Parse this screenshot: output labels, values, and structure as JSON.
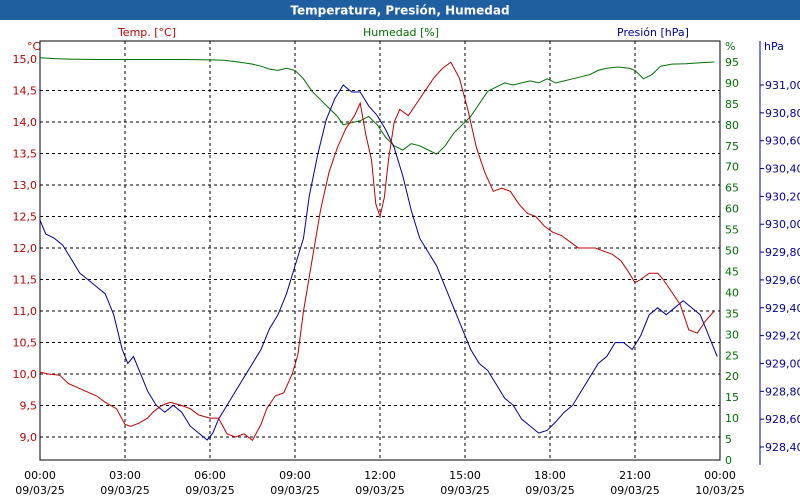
{
  "chart_data": {
    "type": "line",
    "title": "Temperatura, Presión, Humedad",
    "colors": {
      "temp": "#c00000",
      "hum": "#007000",
      "pres": "#000099",
      "title_bar": "#1f5fa0"
    },
    "axes": {
      "temp": {
        "label": "Temp. [°C]",
        "unit": "°C",
        "ylim": [
          8.6,
          15.2
        ],
        "ticks": [
          "15,0",
          "14,5",
          "14,0",
          "13,5",
          "13,0",
          "12,5",
          "12,0",
          "11,5",
          "11,0",
          "10,5",
          "10,0",
          "9,5",
          "9,0"
        ],
        "tick_values": [
          15.0,
          14.5,
          14.0,
          13.5,
          13.0,
          12.5,
          12.0,
          11.5,
          11.0,
          10.5,
          10.0,
          9.5,
          9.0
        ]
      },
      "hum": {
        "label": "Humedad [%]",
        "unit": "%",
        "ylim": [
          0,
          98
        ],
        "ticks": [
          "95",
          "90",
          "85",
          "80",
          "75",
          "70",
          "65",
          "60",
          "55",
          "50",
          "45",
          "40",
          "35",
          "30",
          "25",
          "20",
          "15",
          "10",
          "5",
          "0"
        ],
        "tick_values": [
          95,
          90,
          85,
          80,
          75,
          70,
          65,
          60,
          55,
          50,
          45,
          40,
          35,
          30,
          25,
          20,
          15,
          10,
          5,
          0
        ]
      },
      "pres": {
        "label": "Presión [hPa]",
        "unit": "hPa",
        "ylim": [
          928.3,
          931.15
        ],
        "ticks": [
          "931,00",
          "930,80",
          "930,60",
          "930,40",
          "930,20",
          "930,00",
          "929,80",
          "929,60",
          "929,40",
          "929,20",
          "929,00",
          "928,80",
          "928,60",
          "928,40"
        ],
        "tick_values": [
          931.0,
          930.8,
          930.6,
          930.4,
          930.2,
          930.0,
          929.8,
          929.6,
          929.4,
          929.2,
          929.0,
          928.8,
          928.6,
          928.4
        ]
      }
    },
    "x_ticks": [
      {
        "time": "00:00",
        "date": "09/03/25",
        "h": 0
      },
      {
        "time": "03:00",
        "date": "09/03/25",
        "h": 3
      },
      {
        "time": "06:00",
        "date": "09/03/25",
        "h": 6
      },
      {
        "time": "09:00",
        "date": "09/03/25",
        "h": 9
      },
      {
        "time": "12:00",
        "date": "09/03/25",
        "h": 12
      },
      {
        "time": "15:00",
        "date": "09/03/25",
        "h": 15
      },
      {
        "time": "18:00",
        "date": "09/03/25",
        "h": 18
      },
      {
        "time": "21:00",
        "date": "09/03/25",
        "h": 21
      },
      {
        "time": "00:00",
        "date": "10/03/25",
        "h": 24
      }
    ],
    "xlim": [
      0,
      24
    ],
    "series": [
      {
        "name": "Temp. [°C]",
        "axis": "temp",
        "key": "temp",
        "points": [
          [
            0,
            10.03
          ],
          [
            0.3,
            10.0
          ],
          [
            0.7,
            9.98
          ],
          [
            1.0,
            9.85
          ],
          [
            1.5,
            9.75
          ],
          [
            2.0,
            9.65
          ],
          [
            2.3,
            9.55
          ],
          [
            2.7,
            9.45
          ],
          [
            3.0,
            9.2
          ],
          [
            3.2,
            9.17
          ],
          [
            3.5,
            9.22
          ],
          [
            3.8,
            9.3
          ],
          [
            4.0,
            9.4
          ],
          [
            4.3,
            9.5
          ],
          [
            4.6,
            9.55
          ],
          [
            5.0,
            9.5
          ],
          [
            5.3,
            9.45
          ],
          [
            5.6,
            9.35
          ],
          [
            6.0,
            9.3
          ],
          [
            6.3,
            9.3
          ],
          [
            6.6,
            9.05
          ],
          [
            6.9,
            9.0
          ],
          [
            7.2,
            9.05
          ],
          [
            7.5,
            8.95
          ],
          [
            7.8,
            9.2
          ],
          [
            8.0,
            9.45
          ],
          [
            8.3,
            9.65
          ],
          [
            8.6,
            9.7
          ],
          [
            8.9,
            10.0
          ],
          [
            9.1,
            10.3
          ],
          [
            9.3,
            11.0
          ],
          [
            9.6,
            11.8
          ],
          [
            9.9,
            12.6
          ],
          [
            10.2,
            13.2
          ],
          [
            10.5,
            13.6
          ],
          [
            10.8,
            13.9
          ],
          [
            11.1,
            14.1
          ],
          [
            11.3,
            14.3
          ],
          [
            11.5,
            13.8
          ],
          [
            11.7,
            13.4
          ],
          [
            11.85,
            12.7
          ],
          [
            12.0,
            12.5
          ],
          [
            12.15,
            12.8
          ],
          [
            12.3,
            13.4
          ],
          [
            12.5,
            14.0
          ],
          [
            12.7,
            14.2
          ],
          [
            13.0,
            14.1
          ],
          [
            13.3,
            14.3
          ],
          [
            13.6,
            14.5
          ],
          [
            13.9,
            14.7
          ],
          [
            14.2,
            14.85
          ],
          [
            14.5,
            14.95
          ],
          [
            14.8,
            14.7
          ],
          [
            15.1,
            14.2
          ],
          [
            15.4,
            13.6
          ],
          [
            15.7,
            13.2
          ],
          [
            16.0,
            12.9
          ],
          [
            16.3,
            12.95
          ],
          [
            16.6,
            12.9
          ],
          [
            16.9,
            12.7
          ],
          [
            17.2,
            12.55
          ],
          [
            17.5,
            12.5
          ],
          [
            17.8,
            12.35
          ],
          [
            18.1,
            12.25
          ],
          [
            18.4,
            12.2
          ],
          [
            18.7,
            12.1
          ],
          [
            19.0,
            12.0
          ],
          [
            19.3,
            12.0
          ],
          [
            19.6,
            12.0
          ],
          [
            19.9,
            11.95
          ],
          [
            20.2,
            11.9
          ],
          [
            20.5,
            11.8
          ],
          [
            20.8,
            11.6
          ],
          [
            21.0,
            11.45
          ],
          [
            21.2,
            11.5
          ],
          [
            21.5,
            11.6
          ],
          [
            21.8,
            11.6
          ],
          [
            22.0,
            11.5
          ],
          [
            22.3,
            11.3
          ],
          [
            22.6,
            11.1
          ],
          [
            22.9,
            10.7
          ],
          [
            23.2,
            10.65
          ],
          [
            23.5,
            10.85
          ],
          [
            23.8,
            11.0
          ]
        ]
      },
      {
        "name": "Humedad [%]",
        "axis": "hum",
        "key": "hum",
        "points": [
          [
            0,
            96.0
          ],
          [
            0.5,
            95.8
          ],
          [
            1.0,
            95.7
          ],
          [
            2.0,
            95.6
          ],
          [
            3.0,
            95.6
          ],
          [
            4.0,
            95.6
          ],
          [
            5.0,
            95.6
          ],
          [
            6.0,
            95.5
          ],
          [
            6.5,
            95.4
          ],
          [
            7.0,
            95.0
          ],
          [
            7.5,
            94.5
          ],
          [
            7.8,
            94.0
          ],
          [
            8.1,
            93.3
          ],
          [
            8.4,
            93.0
          ],
          [
            8.7,
            93.5
          ],
          [
            9.0,
            93.0
          ],
          [
            9.3,
            91.0
          ],
          [
            9.6,
            88.0
          ],
          [
            9.9,
            86.0
          ],
          [
            10.2,
            84.0
          ],
          [
            10.5,
            82.0
          ],
          [
            10.7,
            80.0
          ],
          [
            11.0,
            80.5
          ],
          [
            11.3,
            81.0
          ],
          [
            11.6,
            82.0
          ],
          [
            11.9,
            80.0
          ],
          [
            12.2,
            77.0
          ],
          [
            12.5,
            75.0
          ],
          [
            12.8,
            74.0
          ],
          [
            13.1,
            75.5
          ],
          [
            13.4,
            75.0
          ],
          [
            13.7,
            74.0
          ],
          [
            14.0,
            73.0
          ],
          [
            14.3,
            75.0
          ],
          [
            14.6,
            78.0
          ],
          [
            14.9,
            80.0
          ],
          [
            15.2,
            82.0
          ],
          [
            15.5,
            85.0
          ],
          [
            15.8,
            88.0
          ],
          [
            16.1,
            89.0
          ],
          [
            16.4,
            90.0
          ],
          [
            16.7,
            89.5
          ],
          [
            17.0,
            90.0
          ],
          [
            17.3,
            90.5
          ],
          [
            17.6,
            90.0
          ],
          [
            17.9,
            91.0
          ],
          [
            18.2,
            90.0
          ],
          [
            18.5,
            90.5
          ],
          [
            18.8,
            91.0
          ],
          [
            19.1,
            91.5
          ],
          [
            19.4,
            92.0
          ],
          [
            19.7,
            93.0
          ],
          [
            20.0,
            93.5
          ],
          [
            20.4,
            93.8
          ],
          [
            20.8,
            93.5
          ],
          [
            21.0,
            93.0
          ],
          [
            21.3,
            91.0
          ],
          [
            21.6,
            92.0
          ],
          [
            21.9,
            94.0
          ],
          [
            22.3,
            94.5
          ],
          [
            22.8,
            94.6
          ],
          [
            23.3,
            94.8
          ],
          [
            23.8,
            95.0
          ]
        ]
      },
      {
        "name": "Presión [hPa]",
        "axis": "pres",
        "key": "pres",
        "points": [
          [
            0,
            930.03
          ],
          [
            0.2,
            929.93
          ],
          [
            0.5,
            929.9
          ],
          [
            0.8,
            929.85
          ],
          [
            1.1,
            929.75
          ],
          [
            1.4,
            929.65
          ],
          [
            1.7,
            929.6
          ],
          [
            2.0,
            929.55
          ],
          [
            2.3,
            929.5
          ],
          [
            2.6,
            929.35
          ],
          [
            2.9,
            929.1
          ],
          [
            3.1,
            929.0
          ],
          [
            3.3,
            929.05
          ],
          [
            3.5,
            928.95
          ],
          [
            3.8,
            928.8
          ],
          [
            4.1,
            928.7
          ],
          [
            4.4,
            928.65
          ],
          [
            4.7,
            928.7
          ],
          [
            5.0,
            928.65
          ],
          [
            5.3,
            928.55
          ],
          [
            5.6,
            928.5
          ],
          [
            5.9,
            928.45
          ],
          [
            6.1,
            928.5
          ],
          [
            6.3,
            928.6
          ],
          [
            6.6,
            928.7
          ],
          [
            6.9,
            928.8
          ],
          [
            7.2,
            928.9
          ],
          [
            7.5,
            929.0
          ],
          [
            7.8,
            929.1
          ],
          [
            8.1,
            929.25
          ],
          [
            8.4,
            929.35
          ],
          [
            8.7,
            929.5
          ],
          [
            9.0,
            929.7
          ],
          [
            9.3,
            929.9
          ],
          [
            9.5,
            930.2
          ],
          [
            9.8,
            930.5
          ],
          [
            10.1,
            930.75
          ],
          [
            10.4,
            930.9
          ],
          [
            10.7,
            931.0
          ],
          [
            11.0,
            930.95
          ],
          [
            11.3,
            930.95
          ],
          [
            11.6,
            930.85
          ],
          [
            11.9,
            930.78
          ],
          [
            12.2,
            930.68
          ],
          [
            12.5,
            930.55
          ],
          [
            12.8,
            930.35
          ],
          [
            13.1,
            930.1
          ],
          [
            13.4,
            929.9
          ],
          [
            13.7,
            929.8
          ],
          [
            14.0,
            929.7
          ],
          [
            14.3,
            929.55
          ],
          [
            14.6,
            929.4
          ],
          [
            14.9,
            929.25
          ],
          [
            15.2,
            929.1
          ],
          [
            15.5,
            929.0
          ],
          [
            15.8,
            928.95
          ],
          [
            16.1,
            928.85
          ],
          [
            16.4,
            928.75
          ],
          [
            16.7,
            928.7
          ],
          [
            17.0,
            928.6
          ],
          [
            17.3,
            928.55
          ],
          [
            17.6,
            928.5
          ],
          [
            17.9,
            928.52
          ],
          [
            18.2,
            928.58
          ],
          [
            18.5,
            928.65
          ],
          [
            18.8,
            928.7
          ],
          [
            19.1,
            928.8
          ],
          [
            19.4,
            928.9
          ],
          [
            19.7,
            929.0
          ],
          [
            20.0,
            929.05
          ],
          [
            20.3,
            929.15
          ],
          [
            20.6,
            929.15
          ],
          [
            20.9,
            929.1
          ],
          [
            21.2,
            929.2
          ],
          [
            21.5,
            929.35
          ],
          [
            21.8,
            929.4
          ],
          [
            22.1,
            929.35
          ],
          [
            22.4,
            929.4
          ],
          [
            22.7,
            929.45
          ],
          [
            23.0,
            929.4
          ],
          [
            23.3,
            929.35
          ],
          [
            23.6,
            929.2
          ],
          [
            23.9,
            929.05
          ]
        ]
      }
    ]
  }
}
